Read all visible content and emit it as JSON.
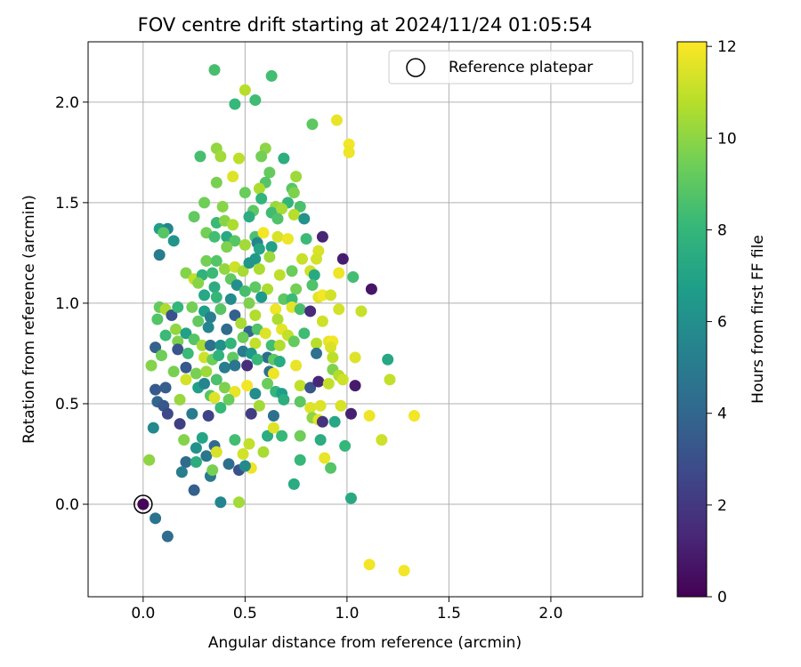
{
  "chart_data": {
    "type": "scatter",
    "title": "FOV centre drift starting at 2024/11/24 01:05:54",
    "xlabel": "Angular distance from reference (arcmin)",
    "ylabel": "Rotation from reference (arcmin)",
    "xlim": [
      -0.27,
      2.45
    ],
    "ylim": [
      -0.46,
      2.3
    ],
    "xticks": [
      "0.0",
      "0.5",
      "1.0",
      "1.5",
      "2.0"
    ],
    "yticks": [
      "0.0",
      "0.5",
      "1.0",
      "1.5",
      "2.0"
    ],
    "grid": true,
    "legend": {
      "placement": "top-right",
      "entries": [
        "Reference platepar"
      ]
    },
    "reference_point": {
      "x": 0.0,
      "y": 0.0
    },
    "colorbar": {
      "label": "Hours from first FF file",
      "range": [
        0,
        12.1
      ],
      "ticks": [
        "0",
        "2",
        "4",
        "6",
        "8",
        "10",
        "12"
      ],
      "colormap": "viridis"
    },
    "points": [
      [
        0.35,
        2.16,
        8.5
      ],
      [
        0.63,
        2.13,
        8.4
      ],
      [
        0.5,
        2.06,
        10.8
      ],
      [
        0.55,
        2.01,
        8.3
      ],
      [
        0.45,
        1.99,
        8.1
      ],
      [
        0.95,
        1.91,
        11.7
      ],
      [
        0.83,
        1.89,
        9.0
      ],
      [
        1.01,
        1.79,
        11.9
      ],
      [
        1.01,
        1.75,
        11.8
      ],
      [
        0.36,
        1.77,
        10.1
      ],
      [
        0.38,
        1.73,
        10.4
      ],
      [
        0.28,
        1.73,
        8.5
      ],
      [
        0.47,
        1.72,
        10.9
      ],
      [
        0.6,
        1.77,
        10.0
      ],
      [
        0.58,
        1.73,
        9.5
      ],
      [
        0.69,
        1.72,
        7.6
      ],
      [
        0.62,
        1.65,
        9.2
      ],
      [
        0.75,
        1.63,
        10.3
      ],
      [
        0.44,
        1.63,
        11.5
      ],
      [
        0.6,
        1.6,
        8.8
      ],
      [
        0.36,
        1.6,
        9.6
      ],
      [
        0.57,
        1.57,
        10.6
      ],
      [
        0.73,
        1.57,
        8.9
      ],
      [
        0.5,
        1.55,
        9.3
      ],
      [
        0.74,
        1.55,
        9.7
      ],
      [
        0.71,
        1.5,
        8.0
      ],
      [
        0.58,
        1.52,
        7.9
      ],
      [
        0.3,
        1.5,
        9.4
      ],
      [
        0.39,
        1.48,
        9.9
      ],
      [
        0.65,
        1.48,
        10.2
      ],
      [
        0.77,
        1.48,
        8.6
      ],
      [
        0.54,
        1.46,
        9.0
      ],
      [
        0.63,
        1.45,
        8.3
      ],
      [
        0.68,
        1.47,
        10.5
      ],
      [
        0.74,
        1.44,
        10.8
      ],
      [
        0.25,
        1.43,
        9.1
      ],
      [
        0.36,
        1.4,
        8.2
      ],
      [
        0.4,
        1.41,
        9.9
      ],
      [
        0.44,
        1.39,
        10.6
      ],
      [
        0.52,
        1.43,
        7.5
      ],
      [
        0.66,
        1.42,
        8.7
      ],
      [
        0.79,
        1.42,
        6.2
      ],
      [
        0.31,
        1.35,
        9.5
      ],
      [
        0.35,
        1.33,
        8.4
      ],
      [
        0.41,
        1.33,
        7.3
      ],
      [
        0.45,
        1.31,
        8.9
      ],
      [
        0.55,
        1.33,
        8.6
      ],
      [
        0.56,
        1.3,
        5.5
      ],
      [
        0.59,
        1.35,
        11.9
      ],
      [
        0.66,
        1.33,
        11.4
      ],
      [
        0.71,
        1.32,
        11.8
      ],
      [
        0.8,
        1.32,
        8.2
      ],
      [
        0.88,
        1.33,
        1.2
      ],
      [
        0.08,
        1.37,
        6.8
      ],
      [
        0.12,
        1.37,
        5.5
      ],
      [
        0.1,
        1.35,
        8.9
      ],
      [
        0.15,
        1.31,
        6.3
      ],
      [
        0.08,
        1.24,
        5.0
      ],
      [
        0.41,
        1.28,
        9.7
      ],
      [
        0.5,
        1.29,
        10.4
      ],
      [
        0.57,
        1.27,
        7.1
      ],
      [
        0.63,
        1.28,
        6.9
      ],
      [
        0.78,
        1.22,
        11.1
      ],
      [
        0.55,
        1.22,
        6.5
      ],
      [
        0.62,
        1.23,
        10.3
      ],
      [
        0.86,
        1.26,
        11.4
      ],
      [
        0.85,
        1.22,
        11.3
      ],
      [
        0.98,
        1.22,
        1.0
      ],
      [
        0.31,
        1.21,
        9.5
      ],
      [
        0.36,
        1.21,
        8.8
      ],
      [
        0.4,
        1.17,
        10.1
      ],
      [
        0.45,
        1.18,
        11.2
      ],
      [
        0.49,
        1.16,
        10.5
      ],
      [
        0.52,
        1.2,
        6.4
      ],
      [
        0.21,
        1.15,
        9.8
      ],
      [
        0.25,
        1.12,
        11.0
      ],
      [
        0.29,
        1.14,
        7.8
      ],
      [
        0.34,
        1.15,
        8.2
      ],
      [
        0.43,
        1.12,
        9.1
      ],
      [
        0.57,
        1.17,
        10.6
      ],
      [
        0.67,
        1.14,
        10.9
      ],
      [
        0.73,
        1.16,
        9.3
      ],
      [
        0.82,
        1.16,
        11.2
      ],
      [
        0.84,
        1.14,
        7.3
      ],
      [
        0.96,
        1.15,
        11.8
      ],
      [
        0.27,
        1.1,
        9.9
      ],
      [
        0.35,
        1.08,
        7.5
      ],
      [
        0.46,
        1.09,
        6.0
      ],
      [
        0.5,
        1.06,
        8.5
      ],
      [
        0.55,
        1.08,
        9.0
      ],
      [
        0.61,
        1.07,
        10.6
      ],
      [
        0.75,
        1.07,
        9.5
      ],
      [
        0.83,
        1.09,
        8.7
      ],
      [
        1.03,
        1.13,
        8.4
      ],
      [
        1.12,
        1.07,
        0.7
      ],
      [
        0.3,
        1.04,
        7.2
      ],
      [
        0.36,
        1.03,
        8.0
      ],
      [
        0.43,
        1.02,
        5.8
      ],
      [
        0.52,
        1.0,
        9.7
      ],
      [
        0.58,
        1.03,
        6.6
      ],
      [
        0.69,
        1.02,
        9.0
      ],
      [
        0.73,
        1.02,
        8.2
      ],
      [
        0.86,
        1.03,
        11.6
      ],
      [
        0.88,
        1.04,
        11.9
      ],
      [
        0.92,
        1.04,
        11.3
      ],
      [
        0.08,
        0.98,
        9.2
      ],
      [
        0.11,
        0.97,
        10.6
      ],
      [
        0.14,
        0.94,
        3.1
      ],
      [
        0.17,
        0.98,
        8.0
      ],
      [
        0.24,
        0.98,
        9.5
      ],
      [
        0.3,
        0.96,
        6.7
      ],
      [
        0.33,
        0.93,
        5.2
      ],
      [
        0.38,
        0.97,
        8.9
      ],
      [
        0.45,
        0.94,
        3.7
      ],
      [
        0.55,
        0.94,
        10.7
      ],
      [
        0.65,
        0.97,
        11.8
      ],
      [
        0.73,
        0.98,
        11.6
      ],
      [
        0.77,
        0.97,
        8.5
      ],
      [
        0.82,
        0.96,
        1.5
      ],
      [
        0.96,
        0.97,
        11.3
      ],
      [
        1.07,
        0.96,
        11.1
      ],
      [
        0.07,
        0.92,
        8.8
      ],
      [
        0.16,
        0.87,
        10.1
      ],
      [
        0.21,
        0.85,
        6.9
      ],
      [
        0.27,
        0.91,
        9.1
      ],
      [
        0.32,
        0.88,
        5.5
      ],
      [
        0.41,
        0.87,
        4.2
      ],
      [
        0.48,
        0.9,
        10.5
      ],
      [
        0.52,
        0.86,
        4.0
      ],
      [
        0.56,
        0.87,
        8.7
      ],
      [
        0.6,
        0.85,
        11.5
      ],
      [
        0.66,
        0.92,
        10.6
      ],
      [
        0.68,
        0.87,
        11.6
      ],
      [
        0.71,
        0.84,
        11.0
      ],
      [
        0.74,
        0.81,
        9.2
      ],
      [
        0.79,
        0.85,
        8.3
      ],
      [
        0.88,
        0.91,
        11.2
      ],
      [
        0.11,
        0.84,
        8.2
      ],
      [
        0.17,
        0.81,
        9.7
      ],
      [
        0.25,
        0.82,
        8.8
      ],
      [
        0.29,
        0.79,
        10.5
      ],
      [
        0.33,
        0.79,
        4.5
      ],
      [
        0.38,
        0.79,
        6.1
      ],
      [
        0.43,
        0.8,
        7.9
      ],
      [
        0.49,
        0.83,
        9.3
      ],
      [
        0.55,
        0.8,
        11.0
      ],
      [
        0.63,
        0.79,
        8.4
      ],
      [
        0.67,
        0.79,
        10.7
      ],
      [
        0.85,
        0.8,
        10.8
      ],
      [
        0.91,
        0.81,
        11.7
      ],
      [
        0.93,
        0.81,
        11.9
      ],
      [
        0.92,
        0.78,
        11.4
      ],
      [
        0.06,
        0.78,
        3.8
      ],
      [
        0.09,
        0.74,
        9.4
      ],
      [
        0.17,
        0.77,
        3.2
      ],
      [
        0.22,
        0.75,
        8.2
      ],
      [
        0.3,
        0.73,
        11.2
      ],
      [
        0.34,
        0.72,
        9.4
      ],
      [
        0.37,
        0.74,
        7.8
      ],
      [
        0.44,
        0.73,
        9.1
      ],
      [
        0.49,
        0.76,
        5.0
      ],
      [
        0.53,
        0.75,
        6.4
      ],
      [
        0.61,
        0.73,
        4.3
      ],
      [
        0.64,
        0.72,
        9.0
      ],
      [
        0.67,
        0.71,
        7.4
      ],
      [
        0.85,
        0.75,
        4.5
      ],
      [
        0.93,
        0.73,
        10.9
      ],
      [
        1.04,
        0.73,
        11.5
      ],
      [
        0.04,
        0.69,
        9.8
      ],
      [
        0.15,
        0.66,
        9.6
      ],
      [
        0.21,
        0.68,
        3.4
      ],
      [
        0.26,
        0.65,
        9.6
      ],
      [
        0.31,
        0.66,
        10.3
      ],
      [
        0.36,
        0.62,
        8.6
      ],
      [
        0.4,
        0.68,
        5.1
      ],
      [
        0.45,
        0.69,
        4.7
      ],
      [
        0.51,
        0.69,
        1.6
      ],
      [
        0.56,
        0.72,
        8.1
      ],
      [
        0.62,
        0.66,
        4.5
      ],
      [
        0.64,
        0.65,
        11.8
      ],
      [
        0.75,
        0.69,
        11.7
      ],
      [
        0.93,
        0.67,
        9.7
      ],
      [
        0.96,
        0.64,
        10.7
      ],
      [
        0.98,
        0.62,
        11.2
      ],
      [
        1.2,
        0.72,
        7.2
      ],
      [
        0.06,
        0.57,
        3.4
      ],
      [
        0.11,
        0.58,
        3.6
      ],
      [
        0.18,
        0.52,
        10.2
      ],
      [
        0.21,
        0.62,
        11.3
      ],
      [
        0.27,
        0.58,
        6.8
      ],
      [
        0.3,
        0.6,
        5.5
      ],
      [
        0.33,
        0.54,
        8.9
      ],
      [
        0.35,
        0.53,
        11.5
      ],
      [
        0.4,
        0.58,
        9.7
      ],
      [
        0.45,
        0.56,
        11.7
      ],
      [
        0.51,
        0.59,
        11.9
      ],
      [
        0.55,
        0.55,
        5.9
      ],
      [
        0.61,
        0.6,
        9.3
      ],
      [
        0.65,
        0.56,
        8.0
      ],
      [
        0.68,
        0.55,
        6.7
      ],
      [
        0.77,
        0.59,
        11.0
      ],
      [
        0.82,
        0.58,
        3.2
      ],
      [
        0.86,
        0.61,
        1.3
      ],
      [
        0.91,
        0.6,
        11.0
      ],
      [
        1.04,
        0.59,
        0.9
      ],
      [
        1.21,
        0.62,
        11.0
      ],
      [
        0.07,
        0.51,
        4.0
      ],
      [
        0.1,
        0.49,
        3.3
      ],
      [
        0.12,
        0.45,
        2.7
      ],
      [
        0.18,
        0.4,
        2.3
      ],
      [
        0.24,
        0.45,
        5.0
      ],
      [
        0.32,
        0.44,
        2.5
      ],
      [
        0.38,
        0.48,
        8.1
      ],
      [
        0.42,
        0.52,
        9.3
      ],
      [
        0.53,
        0.45,
        2.2
      ],
      [
        0.57,
        0.49,
        10.4
      ],
      [
        0.64,
        0.44,
        4.5
      ],
      [
        0.69,
        0.52,
        7.6
      ],
      [
        0.77,
        0.51,
        9.0
      ],
      [
        0.82,
        0.48,
        11.5
      ],
      [
        0.87,
        0.49,
        11.5
      ],
      [
        0.97,
        0.49,
        11.4
      ],
      [
        1.02,
        0.45,
        1.1
      ],
      [
        1.11,
        0.44,
        11.8
      ],
      [
        1.33,
        0.44,
        11.9
      ],
      [
        0.05,
        0.38,
        5.7
      ],
      [
        0.2,
        0.32,
        9.8
      ],
      [
        0.26,
        0.28,
        6.1
      ],
      [
        0.29,
        0.33,
        7.1
      ],
      [
        0.35,
        0.29,
        4.2
      ],
      [
        0.45,
        0.32,
        8.4
      ],
      [
        0.52,
        0.3,
        11.0
      ],
      [
        0.61,
        0.34,
        7.5
      ],
      [
        0.64,
        0.38,
        11.5
      ],
      [
        0.68,
        0.34,
        8.1
      ],
      [
        0.77,
        0.34,
        9.4
      ],
      [
        0.83,
        0.43,
        10.0
      ],
      [
        0.86,
        0.42,
        11.6
      ],
      [
        0.88,
        0.41,
        1.8
      ],
      [
        0.87,
        0.32,
        7.5
      ],
      [
        0.94,
        0.41,
        7.2
      ],
      [
        0.99,
        0.29,
        8.0
      ],
      [
        1.17,
        0.32,
        11.2
      ],
      [
        0.03,
        0.22,
        10.0
      ],
      [
        0.21,
        0.21,
        4.2
      ],
      [
        0.26,
        0.21,
        7.5
      ],
      [
        0.31,
        0.24,
        4.8
      ],
      [
        0.36,
        0.26,
        11.4
      ],
      [
        0.42,
        0.2,
        4.4
      ],
      [
        0.47,
        0.17,
        3.1
      ],
      [
        0.49,
        0.25,
        11.3
      ],
      [
        0.53,
        0.18,
        11.8
      ],
      [
        0.59,
        0.26,
        10.5
      ],
      [
        0.77,
        0.22,
        8.1
      ],
      [
        0.89,
        0.23,
        11.7
      ],
      [
        0.92,
        0.18,
        8.8
      ],
      [
        0.19,
        0.16,
        5.1
      ],
      [
        0.25,
        0.07,
        3.7
      ],
      [
        0.33,
        0.14,
        4.9
      ],
      [
        0.34,
        0.17,
        9.6
      ],
      [
        0.38,
        0.01,
        5.5
      ],
      [
        0.5,
        0.19,
        5.7
      ],
      [
        0.47,
        0.01,
        10.4
      ],
      [
        0.74,
        0.1,
        7.4
      ],
      [
        1.02,
        0.03,
        7.3
      ],
      [
        0.0,
        0.0,
        0.2
      ],
      [
        0.06,
        -0.07,
        4.6
      ],
      [
        0.12,
        -0.16,
        4.3
      ],
      [
        1.11,
        -0.3,
        11.9
      ],
      [
        1.28,
        -0.33,
        11.9
      ]
    ]
  }
}
